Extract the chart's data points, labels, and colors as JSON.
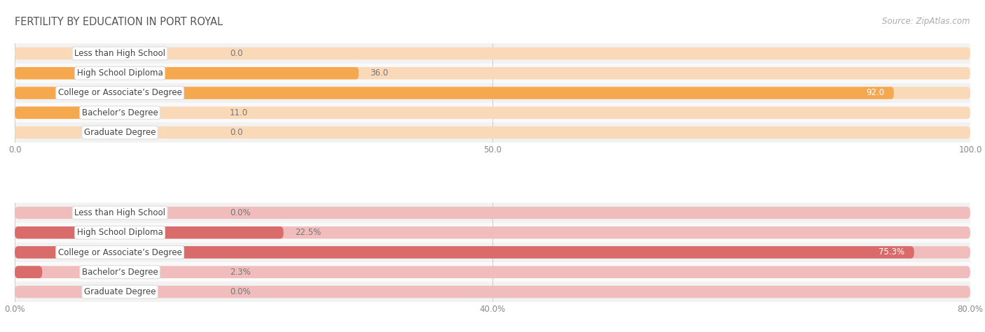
{
  "title": "FERTILITY BY EDUCATION IN PORT ROYAL",
  "source": "Source: ZipAtlas.com",
  "top_chart": {
    "categories": [
      "Less than High School",
      "High School Diploma",
      "College or Associate’s Degree",
      "Bachelor’s Degree",
      "Graduate Degree"
    ],
    "values": [
      0.0,
      36.0,
      92.0,
      11.0,
      0.0
    ],
    "xlim": [
      0,
      100
    ],
    "xticks": [
      0.0,
      50.0,
      100.0
    ],
    "xtick_labels": [
      "0.0",
      "50.0",
      "100.0"
    ],
    "bar_color": "#f5a84e",
    "bar_bg_color": "#fad9b8",
    "row_bg_colors": [
      "#f2f2f2",
      "#fafafa"
    ],
    "value_labels": [
      "0.0",
      "36.0",
      "92.0",
      "11.0",
      "0.0"
    ],
    "value_inside_threshold": 0.88
  },
  "bottom_chart": {
    "categories": [
      "Less than High School",
      "High School Diploma",
      "College or Associate’s Degree",
      "Bachelor’s Degree",
      "Graduate Degree"
    ],
    "values": [
      0.0,
      22.5,
      75.3,
      2.3,
      0.0
    ],
    "xlim": [
      0,
      80
    ],
    "xticks": [
      0.0,
      40.0,
      80.0
    ],
    "xtick_labels": [
      "0.0%",
      "40.0%",
      "80.0%"
    ],
    "bar_color": "#d96b6b",
    "bar_bg_color": "#f0bcbc",
    "row_bg_colors": [
      "#f2f2f2",
      "#fafafa"
    ],
    "value_labels": [
      "0.0%",
      "22.5%",
      "75.3%",
      "2.3%",
      "0.0%"
    ],
    "value_inside_threshold": 0.88
  },
  "bg_color": "#ffffff",
  "title_fontsize": 10.5,
  "bar_label_fontsize": 8.5,
  "category_label_fontsize": 8.5,
  "axis_tick_fontsize": 8.5,
  "source_fontsize": 8.5
}
